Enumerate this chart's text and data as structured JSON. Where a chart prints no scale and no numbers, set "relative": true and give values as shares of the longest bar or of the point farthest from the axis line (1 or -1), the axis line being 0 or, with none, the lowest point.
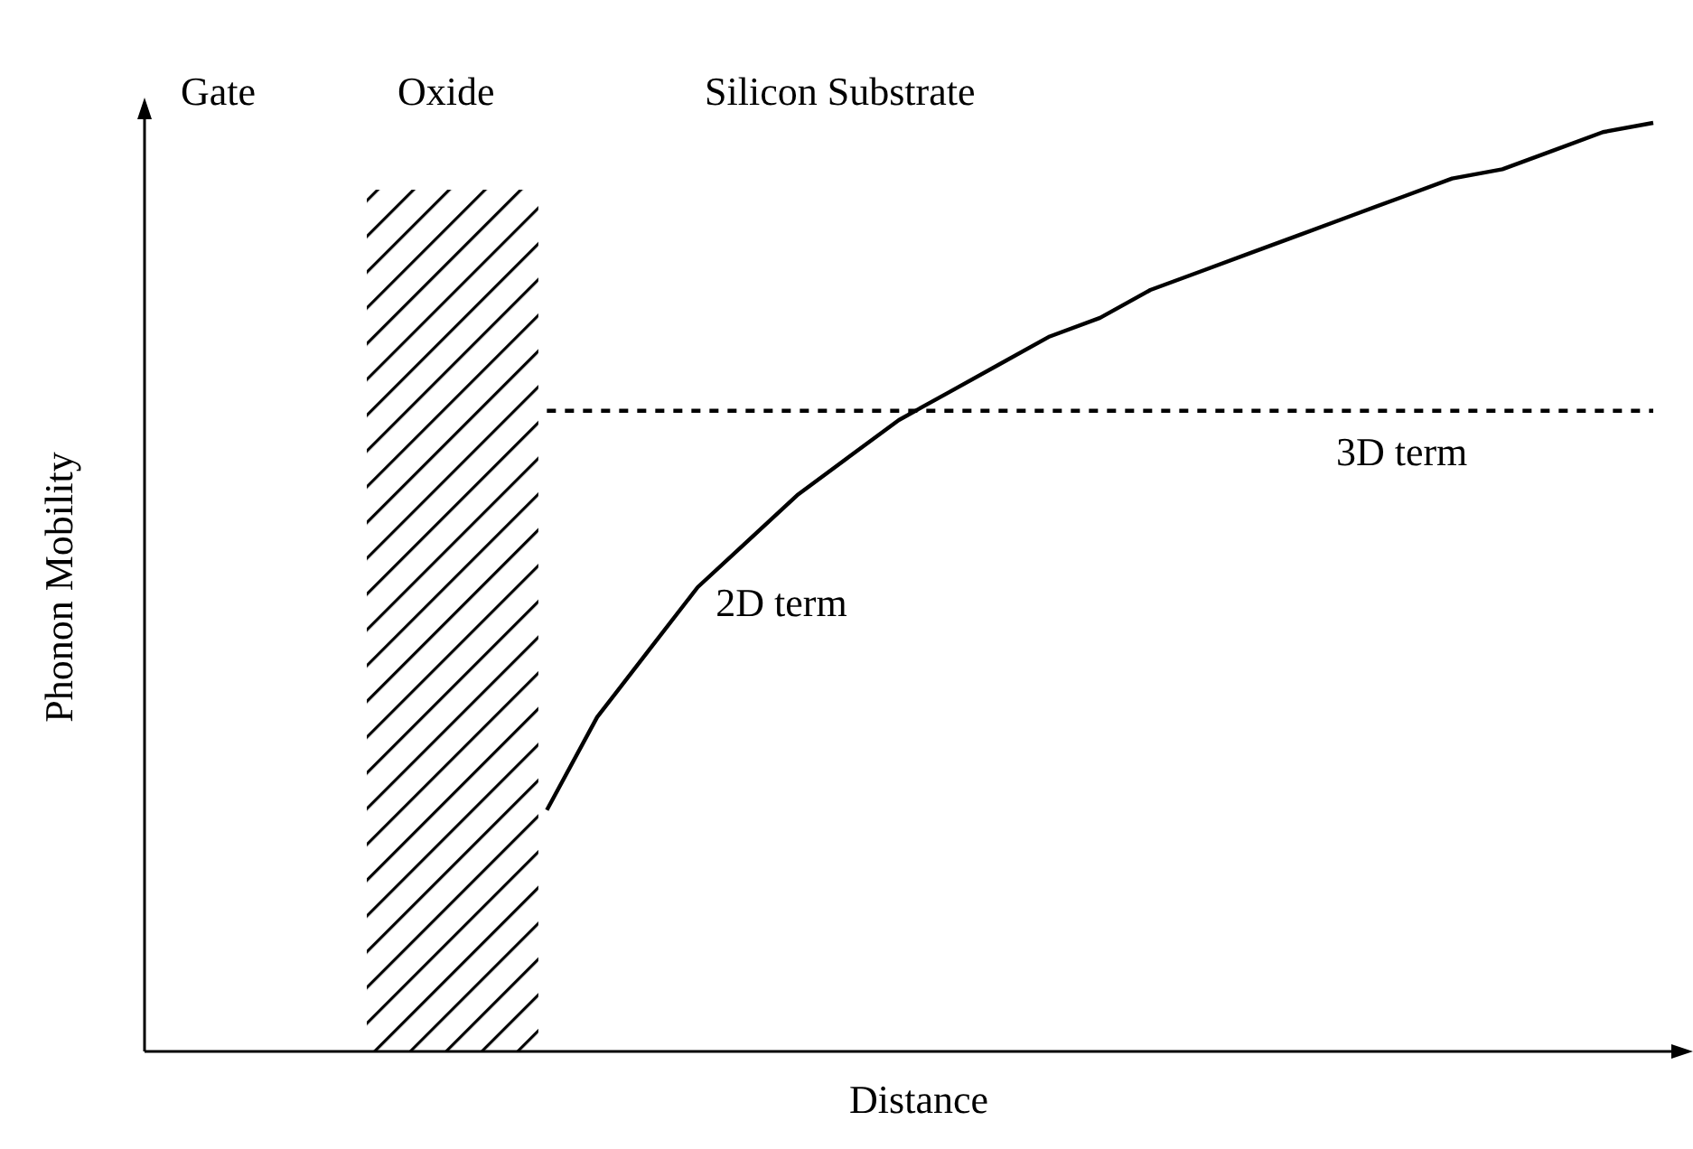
{
  "chart_data": {
    "type": "line",
    "relative": true,
    "xlabel": "Distance",
    "ylabel": "Phonon Mobility",
    "annotations": [
      "Gate",
      "Oxide",
      "Silicon Substrate"
    ],
    "categories": [
      null,
      null,
      null,
      null,
      null,
      null,
      null,
      null,
      null,
      null,
      null,
      null,
      null,
      null,
      null,
      null,
      null,
      null,
      null,
      null,
      null,
      null,
      null,
      null,
      null,
      null,
      null,
      null,
      null,
      null,
      null
    ],
    "series": [
      {
        "name": "2D term",
        "color": "#000000",
        "line_style": "solid",
        "values": [
          null,
          null,
          null,
          null,
          null,
          null,
          null,
          null,
          0.26,
          0.36,
          0.43,
          0.5,
          0.55,
          0.6,
          0.64,
          0.68,
          0.71,
          0.74,
          0.77,
          0.79,
          0.82,
          0.84,
          0.86,
          0.88,
          0.9,
          0.92,
          0.94,
          0.95,
          0.97,
          0.99,
          1.0
        ]
      },
      {
        "name": "3D term",
        "color": "#000000",
        "line_style": "dashed",
        "values": [
          null,
          null,
          null,
          null,
          null,
          null,
          null,
          null,
          0.69,
          0.69,
          0.69,
          0.69,
          0.69,
          0.69,
          0.69,
          0.69,
          0.69,
          0.69,
          0.69,
          0.69,
          0.69,
          0.69,
          0.69,
          0.69,
          0.69,
          0.69,
          0.69,
          0.69,
          0.69,
          0.69,
          0.69
        ]
      }
    ]
  }
}
